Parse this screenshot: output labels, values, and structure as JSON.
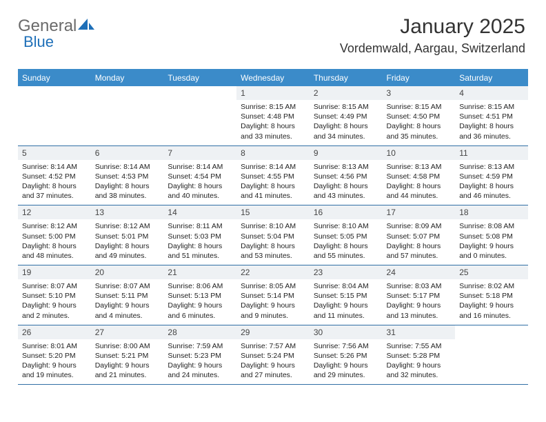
{
  "logo": {
    "part1": "General",
    "part2": "Blue"
  },
  "title": "January 2025",
  "location": "Vordemwald, Aargau, Switzerland",
  "colors": {
    "header_bg": "#3b8bc9",
    "header_text": "#ffffff",
    "daynum_bg": "#eef1f4",
    "row_border": "#2f6ea5",
    "logo_gray": "#6a6a6a",
    "logo_blue": "#1e6fb8"
  },
  "weekdays": [
    "Sunday",
    "Monday",
    "Tuesday",
    "Wednesday",
    "Thursday",
    "Friday",
    "Saturday"
  ],
  "weeks": [
    [
      {
        "day": "",
        "text": ""
      },
      {
        "day": "",
        "text": ""
      },
      {
        "day": "",
        "text": ""
      },
      {
        "day": "1",
        "text": "Sunrise: 8:15 AM\nSunset: 4:48 PM\nDaylight: 8 hours and 33 minutes."
      },
      {
        "day": "2",
        "text": "Sunrise: 8:15 AM\nSunset: 4:49 PM\nDaylight: 8 hours and 34 minutes."
      },
      {
        "day": "3",
        "text": "Sunrise: 8:15 AM\nSunset: 4:50 PM\nDaylight: 8 hours and 35 minutes."
      },
      {
        "day": "4",
        "text": "Sunrise: 8:15 AM\nSunset: 4:51 PM\nDaylight: 8 hours and 36 minutes."
      }
    ],
    [
      {
        "day": "5",
        "text": "Sunrise: 8:14 AM\nSunset: 4:52 PM\nDaylight: 8 hours and 37 minutes."
      },
      {
        "day": "6",
        "text": "Sunrise: 8:14 AM\nSunset: 4:53 PM\nDaylight: 8 hours and 38 minutes."
      },
      {
        "day": "7",
        "text": "Sunrise: 8:14 AM\nSunset: 4:54 PM\nDaylight: 8 hours and 40 minutes."
      },
      {
        "day": "8",
        "text": "Sunrise: 8:14 AM\nSunset: 4:55 PM\nDaylight: 8 hours and 41 minutes."
      },
      {
        "day": "9",
        "text": "Sunrise: 8:13 AM\nSunset: 4:56 PM\nDaylight: 8 hours and 43 minutes."
      },
      {
        "day": "10",
        "text": "Sunrise: 8:13 AM\nSunset: 4:58 PM\nDaylight: 8 hours and 44 minutes."
      },
      {
        "day": "11",
        "text": "Sunrise: 8:13 AM\nSunset: 4:59 PM\nDaylight: 8 hours and 46 minutes."
      }
    ],
    [
      {
        "day": "12",
        "text": "Sunrise: 8:12 AM\nSunset: 5:00 PM\nDaylight: 8 hours and 48 minutes."
      },
      {
        "day": "13",
        "text": "Sunrise: 8:12 AM\nSunset: 5:01 PM\nDaylight: 8 hours and 49 minutes."
      },
      {
        "day": "14",
        "text": "Sunrise: 8:11 AM\nSunset: 5:03 PM\nDaylight: 8 hours and 51 minutes."
      },
      {
        "day": "15",
        "text": "Sunrise: 8:10 AM\nSunset: 5:04 PM\nDaylight: 8 hours and 53 minutes."
      },
      {
        "day": "16",
        "text": "Sunrise: 8:10 AM\nSunset: 5:05 PM\nDaylight: 8 hours and 55 minutes."
      },
      {
        "day": "17",
        "text": "Sunrise: 8:09 AM\nSunset: 5:07 PM\nDaylight: 8 hours and 57 minutes."
      },
      {
        "day": "18",
        "text": "Sunrise: 8:08 AM\nSunset: 5:08 PM\nDaylight: 9 hours and 0 minutes."
      }
    ],
    [
      {
        "day": "19",
        "text": "Sunrise: 8:07 AM\nSunset: 5:10 PM\nDaylight: 9 hours and 2 minutes."
      },
      {
        "day": "20",
        "text": "Sunrise: 8:07 AM\nSunset: 5:11 PM\nDaylight: 9 hours and 4 minutes."
      },
      {
        "day": "21",
        "text": "Sunrise: 8:06 AM\nSunset: 5:13 PM\nDaylight: 9 hours and 6 minutes."
      },
      {
        "day": "22",
        "text": "Sunrise: 8:05 AM\nSunset: 5:14 PM\nDaylight: 9 hours and 9 minutes."
      },
      {
        "day": "23",
        "text": "Sunrise: 8:04 AM\nSunset: 5:15 PM\nDaylight: 9 hours and 11 minutes."
      },
      {
        "day": "24",
        "text": "Sunrise: 8:03 AM\nSunset: 5:17 PM\nDaylight: 9 hours and 13 minutes."
      },
      {
        "day": "25",
        "text": "Sunrise: 8:02 AM\nSunset: 5:18 PM\nDaylight: 9 hours and 16 minutes."
      }
    ],
    [
      {
        "day": "26",
        "text": "Sunrise: 8:01 AM\nSunset: 5:20 PM\nDaylight: 9 hours and 19 minutes."
      },
      {
        "day": "27",
        "text": "Sunrise: 8:00 AM\nSunset: 5:21 PM\nDaylight: 9 hours and 21 minutes."
      },
      {
        "day": "28",
        "text": "Sunrise: 7:59 AM\nSunset: 5:23 PM\nDaylight: 9 hours and 24 minutes."
      },
      {
        "day": "29",
        "text": "Sunrise: 7:57 AM\nSunset: 5:24 PM\nDaylight: 9 hours and 27 minutes."
      },
      {
        "day": "30",
        "text": "Sunrise: 7:56 AM\nSunset: 5:26 PM\nDaylight: 9 hours and 29 minutes."
      },
      {
        "day": "31",
        "text": "Sunrise: 7:55 AM\nSunset: 5:28 PM\nDaylight: 9 hours and 32 minutes."
      },
      {
        "day": "",
        "text": ""
      }
    ]
  ]
}
